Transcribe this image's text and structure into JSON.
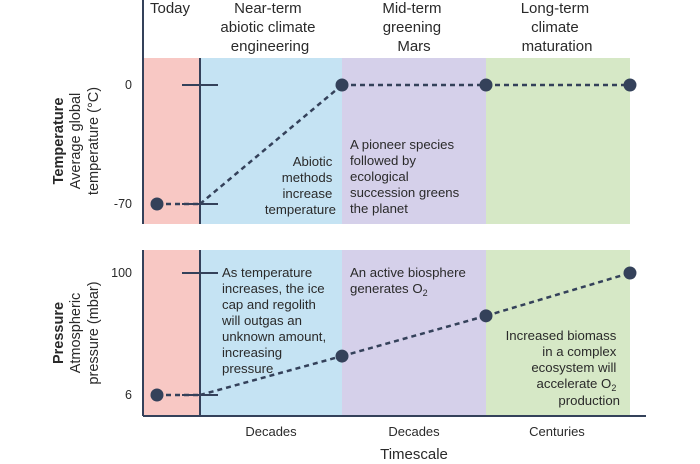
{
  "chart_data": [
    {
      "type": "line",
      "panel": "temperature",
      "ylabel_bold": "Temperature",
      "ylabel": "Average global temperature (°C)",
      "yticks": [
        "0",
        "-70"
      ],
      "phases": [
        "Today",
        "Near-term abiotic climate engineering",
        "Mid-term greening Mars",
        "Long-term climate maturation"
      ],
      "phase_colors": [
        "#f8c8c4",
        "#c5e3f3",
        "#d5d0ea",
        "#d6e8c6"
      ],
      "series": [
        {
          "points": [
            {
              "phase": "Today",
              "y": -70
            },
            {
              "phase": "Near-term abiotic climate engineering",
              "y": 0
            },
            {
              "phase": "Mid-term greening Mars",
              "y": 0
            },
            {
              "phase": "Long-term climate maturation",
              "y": 0
            }
          ]
        }
      ],
      "annotations": [
        "Abiotic methods increase temperature",
        "A pioneer species followed by ecological succession greens the planet"
      ]
    },
    {
      "type": "line",
      "panel": "pressure",
      "ylabel_bold": "Pressure",
      "ylabel": "Atmospheric pressure (mbar)",
      "yticks": [
        "100",
        "6"
      ],
      "series": [
        {
          "points": [
            {
              "phase": "Today",
              "y": 6
            },
            {
              "phase": "Near-term abiotic climate engineering",
              "y": 36
            },
            {
              "phase": "Mid-term greening Mars",
              "y": 67
            },
            {
              "phase": "Long-term climate maturation",
              "y": 100
            }
          ]
        }
      ],
      "annotations": [
        "As temperature increases, the ice cap and regolith will outgas an unknown amount, increasing pressure",
        "An active biosphere generates O2",
        "Increased biomass in a complex ecosystem will accelerate O2 production"
      ]
    }
  ],
  "x_axis": {
    "categories": [
      "Decades",
      "Decades",
      "Centuries"
    ],
    "xlabel": "Timescale"
  },
  "colors": {
    "marker": "#34415a",
    "axis": "#34415a"
  }
}
